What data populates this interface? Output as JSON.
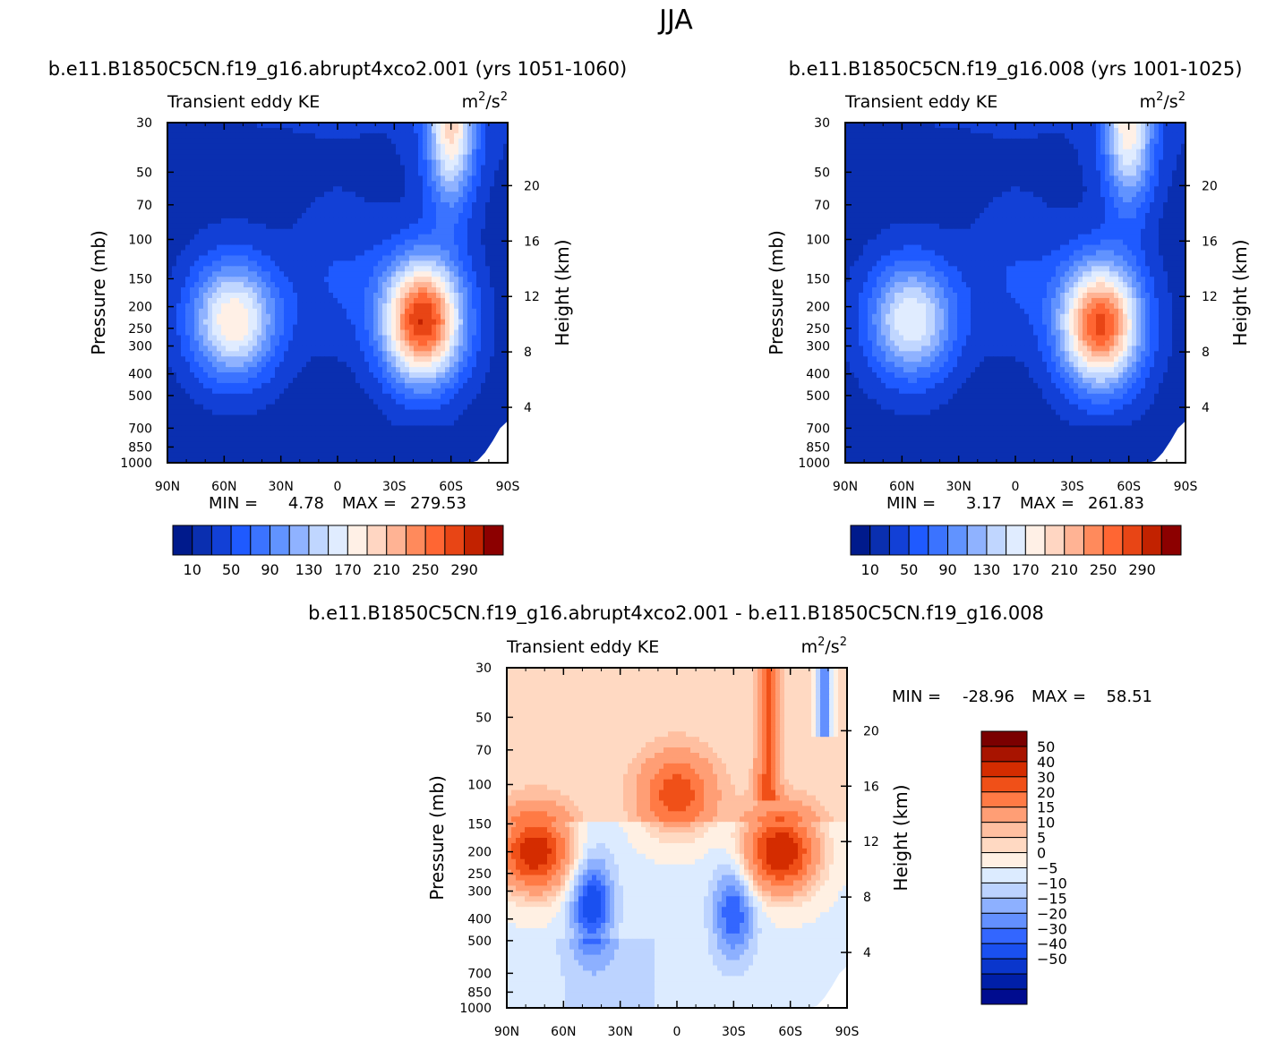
{
  "figure": {
    "title": "JJA",
    "colors": {
      "abs_palette": [
        "#001a8c",
        "#0a2fb0",
        "#1240d6",
        "#1f5aff",
        "#3b73ff",
        "#6193ff",
        "#8fb2ff",
        "#c0d6ff",
        "#e0ecff",
        "#fff0e6",
        "#ffd6c2",
        "#ffb394",
        "#ff8a5c",
        "#ff6633",
        "#e84515",
        "#c22200",
        "#8c0000"
      ],
      "diff_palette": [
        "#000c8f",
        "#001fa8",
        "#0a36cc",
        "#1a50f0",
        "#3366ff",
        "#6390ff",
        "#8db0ff",
        "#bcd3ff",
        "#dcebff",
        "#fff0e3",
        "#ffd9c2",
        "#ffbfa0",
        "#ff9e75",
        "#ff7a45",
        "#f05018",
        "#d42c00",
        "#a81400",
        "#7a0000"
      ]
    }
  },
  "chart_data": [
    {
      "type": "heatmap",
      "id": "panel1",
      "case_title": "b.e11.B1850C5CN.f19_g16.abrupt4xco2.001  (yrs  1051-1060)",
      "left_subtitle": "Transient  eddy  KE",
      "right_subtitle_base": "m",
      "right_subtitle_exp": "2",
      "right_subtitle_mid": "/s",
      "right_subtitle_exp2": "2",
      "xlabel_ticks": [
        "90N",
        "60N",
        "30N",
        "0",
        "30S",
        "60S",
        "90S"
      ],
      "x_range": [
        90,
        -90
      ],
      "ylabel": "Pressure  (mb)",
      "ylabel_right": "Height  (km)",
      "y_ticks": [
        "30",
        "50",
        "70",
        "100",
        "150",
        "200",
        "250",
        "300",
        "400",
        "500",
        "700",
        "850",
        "1000"
      ],
      "y_tick_values": [
        30,
        50,
        70,
        100,
        150,
        200,
        250,
        300,
        400,
        500,
        700,
        850,
        1000
      ],
      "y_range": [
        30,
        1000
      ],
      "height_ticks": [
        "20",
        "16",
        "12",
        "8",
        "4"
      ],
      "height_tick_values": [
        20,
        16,
        12,
        8,
        4
      ],
      "min_label": "MIN  =",
      "min_value": "4.78",
      "max_label": "MAX  =",
      "max_value": "279.53",
      "colorbar_labels": [
        "10",
        "50",
        "90",
        "130",
        "170",
        "210",
        "250",
        "290"
      ],
      "colorbar_levels": [
        10,
        30,
        50,
        70,
        90,
        110,
        130,
        150,
        170,
        190,
        210,
        230,
        250,
        270,
        290
      ],
      "features": [
        {
          "kind": "sh_jet",
          "lat": -45,
          "p": 230,
          "amp": 270
        },
        {
          "kind": "nh_jet",
          "lat": 55,
          "p": 230,
          "amp": 170
        },
        {
          "kind": "strat_jet",
          "lat": -60,
          "p": 30,
          "amp": 170
        }
      ]
    },
    {
      "type": "heatmap",
      "id": "panel2",
      "case_title": "b.e11.B1850C5CN.f19_g16.008  (yrs  1001-1025)",
      "left_subtitle": "Transient  eddy  KE",
      "right_subtitle_base": "m",
      "right_subtitle_exp": "2",
      "right_subtitle_mid": "/s",
      "right_subtitle_exp2": "2",
      "xlabel_ticks": [
        "90N",
        "60N",
        "30N",
        "0",
        "30S",
        "60S",
        "90S"
      ],
      "x_range": [
        90,
        -90
      ],
      "ylabel": "Pressure  (mb)",
      "ylabel_right": "Height  (km)",
      "y_ticks": [
        "30",
        "50",
        "70",
        "100",
        "150",
        "200",
        "250",
        "300",
        "400",
        "500",
        "700",
        "850",
        "1000"
      ],
      "y_tick_values": [
        30,
        50,
        70,
        100,
        150,
        200,
        250,
        300,
        400,
        500,
        700,
        850,
        1000
      ],
      "y_range": [
        30,
        1000
      ],
      "height_ticks": [
        "20",
        "16",
        "12",
        "8",
        "4"
      ],
      "height_tick_values": [
        20,
        16,
        12,
        8,
        4
      ],
      "min_label": "MIN  =",
      "min_value": "3.17",
      "max_label": "MAX  =",
      "max_value": "261.83",
      "colorbar_labels": [
        "10",
        "50",
        "90",
        "130",
        "170",
        "210",
        "250",
        "290"
      ],
      "colorbar_levels": [
        10,
        30,
        50,
        70,
        90,
        110,
        130,
        150,
        170,
        190,
        210,
        230,
        250,
        270,
        290
      ],
      "features": [
        {
          "kind": "sh_jet",
          "lat": -45,
          "p": 240,
          "amp": 255
        },
        {
          "kind": "nh_jet",
          "lat": 55,
          "p": 230,
          "amp": 150
        },
        {
          "kind": "strat_jet",
          "lat": -60,
          "p": 30,
          "amp": 160
        }
      ]
    },
    {
      "type": "heatmap",
      "id": "panel3",
      "case_title": "b.e11.B1850C5CN.f19_g16.abrupt4xco2.001  -  b.e11.B1850C5CN.f19_g16.008",
      "left_subtitle": "Transient  eddy  KE",
      "right_subtitle_base": "m",
      "right_subtitle_exp": "2",
      "right_subtitle_mid": "/s",
      "right_subtitle_exp2": "2",
      "xlabel_ticks": [
        "90N",
        "60N",
        "30N",
        "0",
        "30S",
        "60S",
        "90S"
      ],
      "x_range": [
        90,
        -90
      ],
      "ylabel": "Pressure  (mb)",
      "ylabel_right": "Height  (km)",
      "y_ticks": [
        "30",
        "50",
        "70",
        "100",
        "150",
        "200",
        "250",
        "300",
        "400",
        "500",
        "700",
        "850",
        "1000"
      ],
      "y_tick_values": [
        30,
        50,
        70,
        100,
        150,
        200,
        250,
        300,
        400,
        500,
        700,
        850,
        1000
      ],
      "y_range": [
        30,
        1000
      ],
      "height_ticks": [
        "20",
        "16",
        "12",
        "8",
        "4"
      ],
      "height_tick_values": [
        20,
        16,
        12,
        8,
        4
      ],
      "min_label": "MIN  =",
      "min_value": "-28.96",
      "max_label": "MAX  =",
      "max_value": "58.51",
      "colorbar_labels": [
        "50",
        "40",
        "30",
        "20",
        "15",
        "10",
        "5",
        "0",
        "-5",
        "-10",
        "-15",
        "-20",
        "-30",
        "-40",
        "-50"
      ],
      "colorbar_levels": [
        -50,
        -40,
        -30,
        -20,
        -15,
        -10,
        -5,
        0,
        5,
        10,
        15,
        20,
        30,
        40,
        50
      ],
      "features": [
        {
          "kind": "pos",
          "lat": 75,
          "p": 200,
          "amp": 55
        },
        {
          "kind": "pos",
          "lat": -55,
          "p": 200,
          "amp": 58
        },
        {
          "kind": "pos",
          "lat": 0,
          "p": 110,
          "amp": 35
        },
        {
          "kind": "neg",
          "lat": 45,
          "p": 340,
          "amp": -29
        },
        {
          "kind": "neg",
          "lat": -30,
          "p": 370,
          "amp": -24
        }
      ]
    }
  ]
}
